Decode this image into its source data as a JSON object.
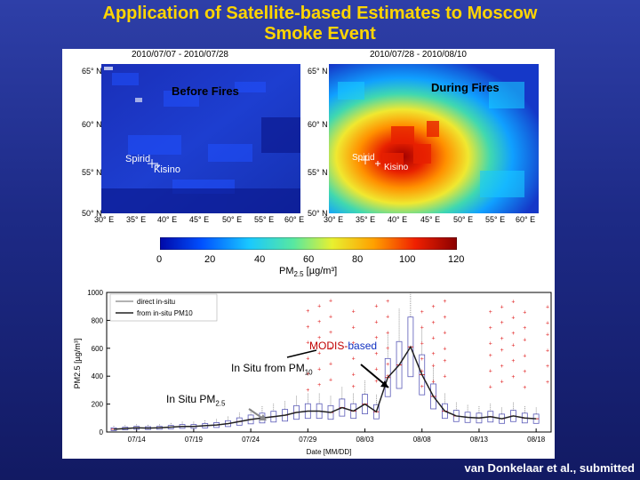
{
  "slide": {
    "title_line1": "Application of Satellite-based Estimates to Moscow",
    "title_line2": "Smoke Event",
    "credit": "van Donkelaar  et al., submitted"
  },
  "maps": {
    "left": {
      "date_range": "2010/07/07 - 2010/07/28",
      "label": "Before Fires",
      "site1": "Spirid",
      "site2": "Kisino"
    },
    "right": {
      "date_range": "2010/07/28 - 2010/08/10",
      "label": "During Fires",
      "site1": "Spirid",
      "site2": "Kisino"
    },
    "lat_ticks": [
      "65° N",
      "60° N",
      "55° N",
      "50° N"
    ],
    "lon_ticks": [
      "30° E",
      "35° E",
      "40° E",
      "45° E",
      "50° E",
      "55° E",
      "60° E"
    ],
    "colorbar": {
      "ticks": [
        "0",
        "20",
        "40",
        "60",
        "80",
        "100",
        "120"
      ],
      "label": "PM",
      "label_sub": "2.5",
      "label_unit": " [µg/m³]",
      "colors": [
        "#0008a8",
        "#0050ff",
        "#19c8ff",
        "#58e8a0",
        "#e8f030",
        "#ffa000",
        "#f02000",
        "#8a0000"
      ]
    }
  },
  "chart_data": {
    "type": "box",
    "xlabel": "Date [MM/DD]",
    "ylabel": "PM2.5 [µg/m³]",
    "ylim": [
      0,
      1000
    ],
    "y_ticks": [
      0,
      200,
      400,
      600,
      800,
      1000
    ],
    "x_ticks": [
      "07/14",
      "07/19",
      "07/24",
      "07/29",
      "08/03",
      "08/08",
      "08/13",
      "08/18"
    ],
    "legend": [
      "direct in-situ",
      "from in-situ PM10"
    ],
    "annotations": {
      "modis_prefix": "MODIS",
      "modis_dash": "-",
      "modis_suffix": "based",
      "insitu_pm10": "In Situ from PM",
      "insitu_pm10_sub": "10",
      "insitu_pm25": "In Situ PM",
      "insitu_pm25_sub": "2.5"
    },
    "series": [
      {
        "name": "direct in-situ",
        "x": [
          12,
          13,
          14,
          15,
          16,
          17,
          18,
          19,
          20,
          21,
          22,
          23,
          24,
          25,
          26,
          27,
          28,
          29,
          30,
          31,
          1,
          2,
          3,
          4,
          5,
          6,
          7,
          8,
          9,
          10,
          11,
          12,
          13,
          14,
          15,
          16,
          17,
          18
        ],
        "y": [
          20,
          25,
          30,
          28,
          30,
          35,
          40,
          40,
          45,
          50,
          60,
          75,
          90,
          100,
          110,
          120,
          140,
          150,
          150,
          140,
          175,
          150,
          200,
          145,
          390,
          480,
          610,
          410,
          255,
          150,
          115,
          105,
          100,
          110,
          95,
          115,
          100,
          95
        ]
      }
    ],
    "boxes": [
      {
        "date": "07/27",
        "median": 130
      },
      {
        "date": "07/30",
        "median": 170
      },
      {
        "date": "08/01",
        "median": 250
      },
      {
        "date": "08/03",
        "median": 260
      },
      {
        "date": "08/04",
        "median": 420
      },
      {
        "date": "08/05",
        "median": 490
      },
      {
        "date": "08/06",
        "median": 510
      },
      {
        "date": "08/07",
        "median": 570
      },
      {
        "date": "08/08",
        "median": 540
      },
      {
        "date": "08/09",
        "median": 400
      },
      {
        "date": "08/10",
        "median": 310
      }
    ]
  }
}
